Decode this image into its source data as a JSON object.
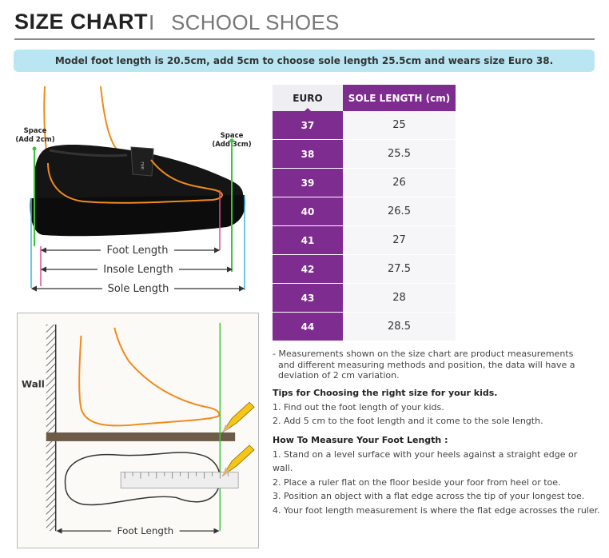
{
  "header": {
    "title": "SIZE CHART",
    "separator": "I",
    "subtitle": "SCHOOL SHOES"
  },
  "banner": "Model foot length is 20.5cm, add 5cm to choose sole length 25.5cm and wears size Euro 38.",
  "shoe_diagram": {
    "space_left_1": "Space",
    "space_left_2": "(Add 2cm)",
    "space_right_1": "Space",
    "space_right_2": "(Add 3cm)",
    "foot_length": "Foot Length",
    "insole_length": "Insole Length",
    "sole_length": "Sole Length",
    "brand": "ǝʌɹ"
  },
  "measure_diagram": {
    "wall": "Wall",
    "foot_length": "Foot Length"
  },
  "table": {
    "headers": [
      "EURO",
      "SOLE LENGTH (cm)"
    ],
    "rows": [
      [
        "37",
        "25"
      ],
      [
        "38",
        "25.5"
      ],
      [
        "39",
        "26"
      ],
      [
        "40",
        "26.5"
      ],
      [
        "41",
        "27"
      ],
      [
        "42",
        "27.5"
      ],
      [
        "43",
        "28"
      ],
      [
        "44",
        "28.5"
      ]
    ]
  },
  "notes": {
    "disclaimer": [
      "- Measurements shown on the size chart are product measurements",
      "and different measuring methods and position, the data will have a",
      "deviation of 2 cm variation."
    ],
    "tips_title": "Tips for Choosing the right size for your kids.",
    "tips": [
      "1. Find out the foot length of your kids.",
      "2. Add 5 cm to the foot length and it come to the sole length."
    ],
    "howto_title": "How To Measure Your Foot Length :",
    "howto": [
      "1. Stand on a level surface with your heels against a straight edge or wall.",
      "2. Place a ruler flat on the floor beside your foor from heel or toe.",
      "3. Position an object with a flat edge across the tip of your longest toe.",
      "4. Your foot length measurement is where the flat edge acrosses the ruler."
    ]
  },
  "colors": {
    "purple": "#7f2c90",
    "banner": "#b9e6f2",
    "foot_outline": "#f08a1c",
    "green_line": "#3cc43c",
    "cyan_line": "#37b8d6",
    "pink_line": "#e34c8c"
  }
}
